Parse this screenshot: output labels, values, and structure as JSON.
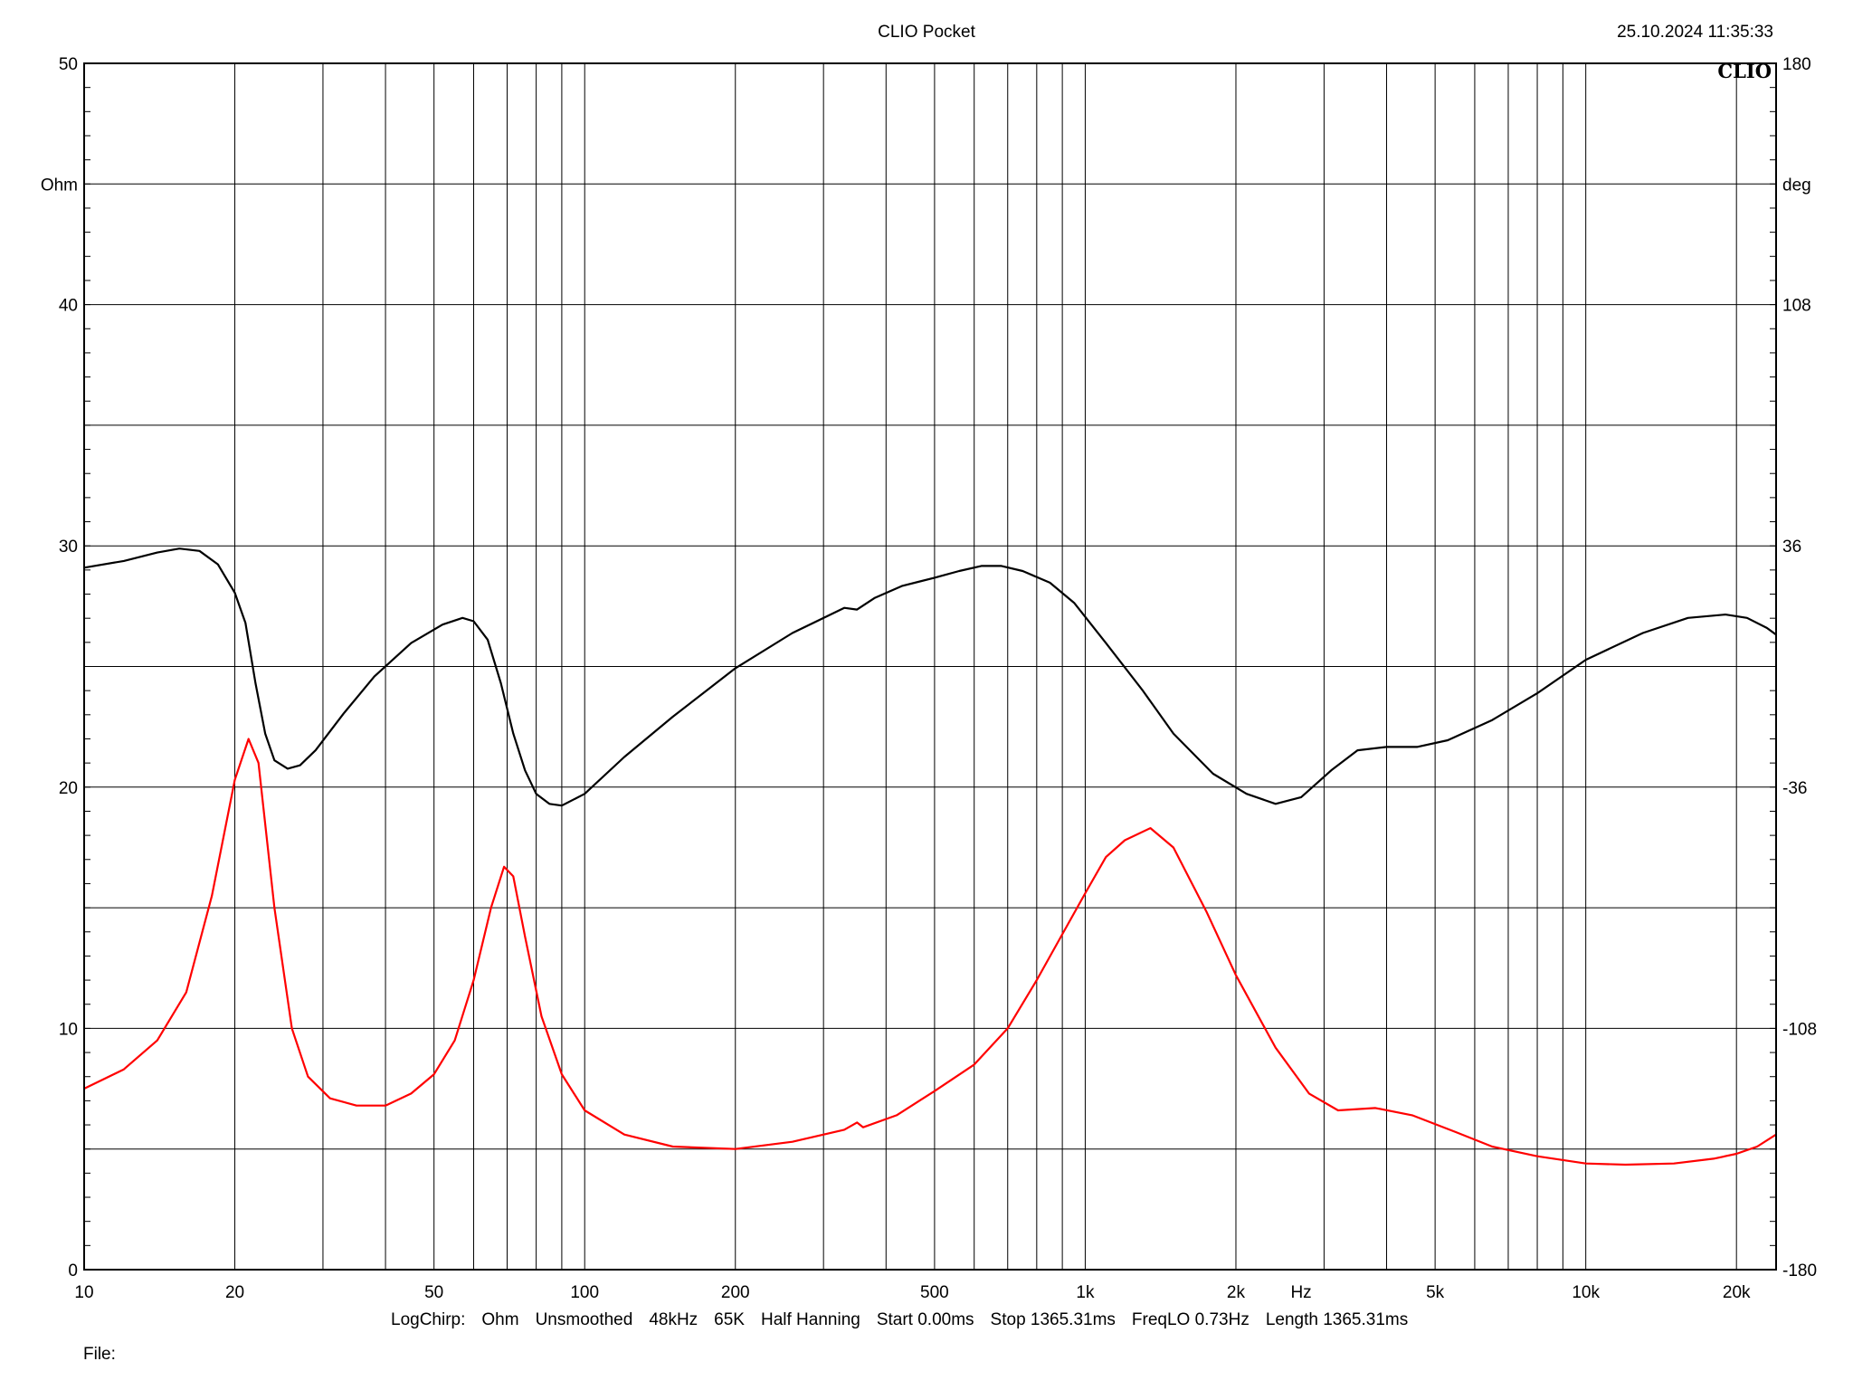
{
  "header": {
    "title": "CLIO Pocket",
    "timestamp": "25.10.2024 11:35:33",
    "brand": "CLIO"
  },
  "footer": {
    "settings": [
      "LogChirp:",
      "Ohm",
      "Unsmoothed",
      "48kHz",
      "65K",
      "Half Hanning",
      "Start 0.00ms",
      "Stop 1365.31ms",
      "FreqLO 0.73Hz",
      "Length 1365.31ms"
    ],
    "file_label": "File:"
  },
  "chart_data": {
    "type": "line",
    "xscale": "log",
    "xlim": [
      10,
      24000
    ],
    "x_unit": "Hz",
    "x_ticks": [
      {
        "value": 10,
        "label": "10"
      },
      {
        "value": 20,
        "label": "20"
      },
      {
        "value": 50,
        "label": "50"
      },
      {
        "value": 100,
        "label": "100"
      },
      {
        "value": 200,
        "label": "200"
      },
      {
        "value": 500,
        "label": "500"
      },
      {
        "value": 1000,
        "label": "1k"
      },
      {
        "value": 2000,
        "label": "2k"
      },
      {
        "value": 5000,
        "label": "5k"
      },
      {
        "value": 10000,
        "label": "10k"
      },
      {
        "value": 20000,
        "label": "20k"
      }
    ],
    "y_left": {
      "unit": "Ohm",
      "lim": [
        0,
        50
      ],
      "ticks": [
        0,
        10,
        20,
        30,
        40,
        50
      ]
    },
    "y_right": {
      "unit": "deg",
      "lim": [
        -180,
        180
      ],
      "ticks": [
        -180,
        -108,
        -36,
        36,
        108,
        180
      ]
    },
    "grid": true,
    "series": [
      {
        "axis": "right",
        "color": "#000000",
        "points": [
          [
            10,
            29.5
          ],
          [
            12,
            31.5
          ],
          [
            14,
            34
          ],
          [
            15.5,
            35.2
          ],
          [
            17,
            34.5
          ],
          [
            18.5,
            30.5
          ],
          [
            20,
            22
          ],
          [
            21,
            13
          ],
          [
            22,
            -5
          ],
          [
            23,
            -20
          ],
          [
            24,
            -28
          ],
          [
            25.5,
            -30.5
          ],
          [
            27,
            -29.5
          ],
          [
            29,
            -25
          ],
          [
            33,
            -14
          ],
          [
            38,
            -3
          ],
          [
            45,
            7
          ],
          [
            52,
            12.5
          ],
          [
            57,
            14.5
          ],
          [
            60,
            13.5
          ],
          [
            64,
            8
          ],
          [
            68,
            -5
          ],
          [
            72,
            -20
          ],
          [
            76,
            -31
          ],
          [
            80,
            -38
          ],
          [
            85,
            -41
          ],
          [
            90,
            -41.5
          ],
          [
            100,
            -38
          ],
          [
            120,
            -27
          ],
          [
            150,
            -15
          ],
          [
            200,
            -0.5
          ],
          [
            260,
            10
          ],
          [
            330,
            17.5
          ],
          [
            350,
            17
          ],
          [
            380,
            20.5
          ],
          [
            430,
            24
          ],
          [
            500,
            26.5
          ],
          [
            560,
            28.5
          ],
          [
            620,
            30
          ],
          [
            680,
            30
          ],
          [
            750,
            28.5
          ],
          [
            850,
            25
          ],
          [
            950,
            19
          ],
          [
            1100,
            7
          ],
          [
            1300,
            -7
          ],
          [
            1500,
            -20
          ],
          [
            1800,
            -32
          ],
          [
            2100,
            -38
          ],
          [
            2400,
            -41
          ],
          [
            2700,
            -39
          ],
          [
            3100,
            -31
          ],
          [
            3500,
            -25
          ],
          [
            4000,
            -24
          ],
          [
            4600,
            -24
          ],
          [
            5300,
            -22
          ],
          [
            6500,
            -16
          ],
          [
            8000,
            -8
          ],
          [
            10000,
            2
          ],
          [
            13000,
            10
          ],
          [
            16000,
            14.5
          ],
          [
            19000,
            15.5
          ],
          [
            21000,
            14.5
          ],
          [
            23000,
            11.5
          ],
          [
            24000,
            9.5
          ]
        ]
      },
      {
        "axis": "left",
        "color": "#ff0000",
        "points": [
          [
            10,
            7.5
          ],
          [
            12,
            8.3
          ],
          [
            14,
            9.5
          ],
          [
            16,
            11.5
          ],
          [
            18,
            15.5
          ],
          [
            20,
            20.3
          ],
          [
            21.3,
            22
          ],
          [
            22.3,
            21
          ],
          [
            24,
            15
          ],
          [
            26,
            10
          ],
          [
            28,
            8
          ],
          [
            31,
            7.1
          ],
          [
            35,
            6.8
          ],
          [
            40,
            6.8
          ],
          [
            45,
            7.3
          ],
          [
            50,
            8.1
          ],
          [
            55,
            9.5
          ],
          [
            60,
            12
          ],
          [
            65,
            15
          ],
          [
            69,
            16.7
          ],
          [
            72,
            16.3
          ],
          [
            76,
            13.8
          ],
          [
            82,
            10.5
          ],
          [
            90,
            8.1
          ],
          [
            100,
            6.6
          ],
          [
            120,
            5.6
          ],
          [
            150,
            5.1
          ],
          [
            200,
            5.0
          ],
          [
            260,
            5.3
          ],
          [
            330,
            5.8
          ],
          [
            350,
            6.1
          ],
          [
            360,
            5.9
          ],
          [
            420,
            6.4
          ],
          [
            500,
            7.4
          ],
          [
            600,
            8.5
          ],
          [
            700,
            10
          ],
          [
            800,
            12
          ],
          [
            900,
            13.9
          ],
          [
            1000,
            15.6
          ],
          [
            1100,
            17.1
          ],
          [
            1200,
            17.8
          ],
          [
            1350,
            18.3
          ],
          [
            1500,
            17.5
          ],
          [
            1750,
            14.8
          ],
          [
            2000,
            12.2
          ],
          [
            2400,
            9.2
          ],
          [
            2800,
            7.3
          ],
          [
            3200,
            6.6
          ],
          [
            3800,
            6.7
          ],
          [
            4500,
            6.4
          ],
          [
            5500,
            5.7
          ],
          [
            6500,
            5.1
          ],
          [
            8000,
            4.7
          ],
          [
            10000,
            4.4
          ],
          [
            12000,
            4.35
          ],
          [
            15000,
            4.4
          ],
          [
            18000,
            4.6
          ],
          [
            20000,
            4.8
          ],
          [
            22000,
            5.1
          ],
          [
            24000,
            5.6
          ]
        ]
      }
    ]
  }
}
